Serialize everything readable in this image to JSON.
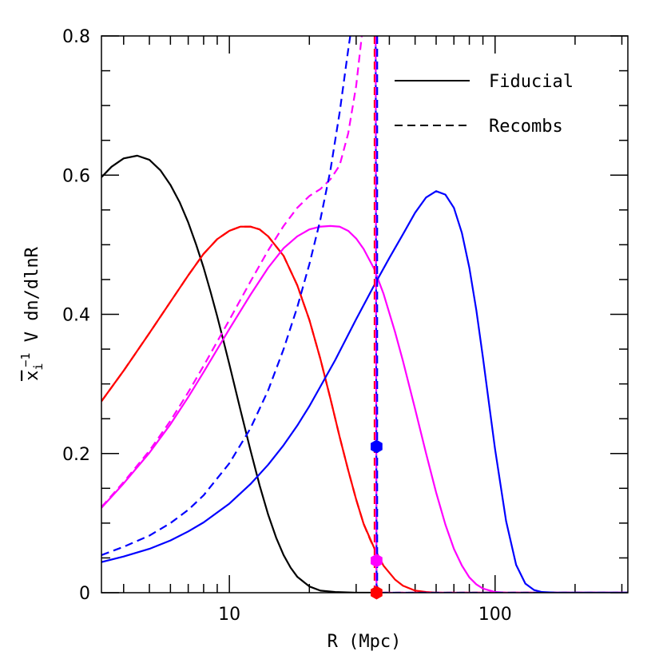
{
  "chart_data": {
    "type": "line",
    "xscale": "log",
    "xlim": [
      3.3,
      316
    ],
    "ylim": [
      0,
      0.8
    ],
    "xlabel": "R (Mpc)",
    "ylabel": {
      "prefix": "x",
      "sup": "−1",
      "sub": "i",
      "rest": " V dn/dlnR"
    },
    "x_tick_labels": [
      {
        "value": 10,
        "label": "10"
      },
      {
        "value": 100,
        "label": "100"
      }
    ],
    "y_tick_labels": [
      {
        "value": 0,
        "label": "0"
      },
      {
        "value": 0.2,
        "label": "0.2"
      },
      {
        "value": 0.4,
        "label": "0.4"
      },
      {
        "value": 0.6,
        "label": "0.6"
      },
      {
        "value": 0.8,
        "label": "0.8"
      }
    ],
    "legend": {
      "placement": "top-right",
      "entries": [
        {
          "label": "Fiducial",
          "style": "solid"
        },
        {
          "label": "Recombs",
          "style": "dashed"
        }
      ]
    },
    "series": [
      {
        "color": "#000000",
        "style": "solid",
        "points": [
          [
            3.3,
            0.597
          ],
          [
            3.6,
            0.612
          ],
          [
            4.0,
            0.624
          ],
          [
            4.5,
            0.628
          ],
          [
            5.0,
            0.622
          ],
          [
            5.5,
            0.607
          ],
          [
            6.0,
            0.586
          ],
          [
            6.5,
            0.561
          ],
          [
            7.0,
            0.532
          ],
          [
            7.5,
            0.5
          ],
          [
            8.0,
            0.467
          ],
          [
            8.5,
            0.432
          ],
          [
            9.0,
            0.397
          ],
          [
            9.5,
            0.362
          ],
          [
            10,
            0.328
          ],
          [
            11,
            0.263
          ],
          [
            12,
            0.205
          ],
          [
            13,
            0.154
          ],
          [
            14,
            0.112
          ],
          [
            15,
            0.079
          ],
          [
            16,
            0.054
          ],
          [
            17,
            0.036
          ],
          [
            18,
            0.023
          ],
          [
            20,
            0.009
          ],
          [
            22,
            0.003
          ],
          [
            25,
            0.001
          ],
          [
            30,
            0.0
          ],
          [
            36,
            0.0
          ]
        ]
      },
      {
        "color": "#ff0000",
        "style": "solid",
        "points": [
          [
            3.3,
            0.275
          ],
          [
            4,
            0.319
          ],
          [
            5,
            0.373
          ],
          [
            6,
            0.418
          ],
          [
            7,
            0.456
          ],
          [
            8,
            0.487
          ],
          [
            9,
            0.508
          ],
          [
            10,
            0.52
          ],
          [
            11,
            0.526
          ],
          [
            12,
            0.526
          ],
          [
            13,
            0.522
          ],
          [
            14,
            0.512
          ],
          [
            16,
            0.484
          ],
          [
            18,
            0.442
          ],
          [
            20,
            0.392
          ],
          [
            22,
            0.336
          ],
          [
            24,
            0.279
          ],
          [
            26,
            0.224
          ],
          [
            28,
            0.176
          ],
          [
            30,
            0.134
          ],
          [
            32,
            0.099
          ],
          [
            35,
            0.065
          ],
          [
            38,
            0.039
          ],
          [
            42,
            0.019
          ],
          [
            45,
            0.01
          ],
          [
            50,
            0.003
          ],
          [
            55,
            0.001
          ],
          [
            60,
            0.0
          ],
          [
            316,
            0.0
          ]
        ]
      },
      {
        "color": "#ff0000",
        "style": "dashed",
        "points": [
          [
            3.3,
            0.275
          ],
          [
            4,
            0.319
          ],
          [
            5,
            0.373
          ],
          [
            6,
            0.418
          ],
          [
            7,
            0.456
          ],
          [
            8,
            0.487
          ],
          [
            9,
            0.508
          ],
          [
            10,
            0.52
          ],
          [
            11,
            0.526
          ],
          [
            12,
            0.526
          ],
          [
            13,
            0.522
          ],
          [
            14,
            0.512
          ],
          [
            16,
            0.484
          ],
          [
            18,
            0.442
          ],
          [
            20,
            0.392
          ],
          [
            22,
            0.336
          ],
          [
            24,
            0.279
          ],
          [
            26,
            0.224
          ],
          [
            28,
            0.176
          ],
          [
            30,
            0.134
          ],
          [
            32,
            0.099
          ],
          [
            34,
            0.075
          ],
          [
            35.5,
            0.06
          ],
          [
            35.8,
            0.0
          ],
          [
            316,
            0.0
          ]
        ]
      },
      {
        "color": "#ff00ff",
        "style": "solid",
        "points": [
          [
            3.3,
            0.122
          ],
          [
            4,
            0.157
          ],
          [
            5,
            0.201
          ],
          [
            6,
            0.242
          ],
          [
            7,
            0.281
          ],
          [
            8,
            0.317
          ],
          [
            10,
            0.379
          ],
          [
            12,
            0.428
          ],
          [
            14,
            0.467
          ],
          [
            16,
            0.495
          ],
          [
            18,
            0.512
          ],
          [
            20,
            0.522
          ],
          [
            22,
            0.526
          ],
          [
            24,
            0.527
          ],
          [
            26,
            0.526
          ],
          [
            28,
            0.52
          ],
          [
            30,
            0.509
          ],
          [
            32,
            0.494
          ],
          [
            35,
            0.466
          ],
          [
            38,
            0.43
          ],
          [
            42,
            0.375
          ],
          [
            45,
            0.333
          ],
          [
            50,
            0.264
          ],
          [
            55,
            0.2
          ],
          [
            60,
            0.144
          ],
          [
            65,
            0.098
          ],
          [
            70,
            0.063
          ],
          [
            75,
            0.039
          ],
          [
            80,
            0.022
          ],
          [
            85,
            0.012
          ],
          [
            90,
            0.006
          ],
          [
            100,
            0.001
          ],
          [
            110,
            0.0
          ],
          [
            316,
            0.0
          ]
        ]
      },
      {
        "color": "#ff00ff",
        "style": "dashed",
        "points": [
          [
            3.3,
            0.123
          ],
          [
            4,
            0.159
          ],
          [
            5,
            0.204
          ],
          [
            6,
            0.247
          ],
          [
            7,
            0.288
          ],
          [
            8,
            0.326
          ],
          [
            10,
            0.392
          ],
          [
            12,
            0.447
          ],
          [
            14,
            0.492
          ],
          [
            16,
            0.527
          ],
          [
            18,
            0.553
          ],
          [
            20,
            0.57
          ],
          [
            22,
            0.58
          ],
          [
            24,
            0.594
          ],
          [
            26,
            0.614
          ],
          [
            28,
            0.66
          ],
          [
            30,
            0.728
          ],
          [
            31.5,
            0.8
          ],
          [
            32.5,
            0.9
          ],
          [
            35.5,
            0.9
          ],
          [
            35.8,
            0.0
          ],
          [
            316,
            0.0
          ]
        ]
      },
      {
        "color": "#0000ff",
        "style": "solid",
        "points": [
          [
            3.3,
            0.044
          ],
          [
            4,
            0.052
          ],
          [
            5,
            0.063
          ],
          [
            6,
            0.075
          ],
          [
            7,
            0.088
          ],
          [
            8,
            0.101
          ],
          [
            10,
            0.128
          ],
          [
            12,
            0.156
          ],
          [
            14,
            0.184
          ],
          [
            16,
            0.212
          ],
          [
            18,
            0.24
          ],
          [
            20,
            0.268
          ],
          [
            25,
            0.334
          ],
          [
            30,
            0.393
          ],
          [
            35,
            0.441
          ],
          [
            40,
            0.481
          ],
          [
            45,
            0.515
          ],
          [
            50,
            0.546
          ],
          [
            55,
            0.568
          ],
          [
            60,
            0.577
          ],
          [
            65,
            0.572
          ],
          [
            70,
            0.553
          ],
          [
            75,
            0.517
          ],
          [
            80,
            0.467
          ],
          [
            85,
            0.406
          ],
          [
            90,
            0.338
          ],
          [
            95,
            0.27
          ],
          [
            100,
            0.206
          ],
          [
            110,
            0.103
          ],
          [
            120,
            0.04
          ],
          [
            130,
            0.013
          ],
          [
            140,
            0.004
          ],
          [
            150,
            0.001
          ],
          [
            170,
            0.0
          ],
          [
            316,
            0.0
          ]
        ]
      },
      {
        "color": "#0000ff",
        "style": "dashed",
        "points": [
          [
            3.3,
            0.054
          ],
          [
            4,
            0.066
          ],
          [
            5,
            0.082
          ],
          [
            6,
            0.1
          ],
          [
            7,
            0.119
          ],
          [
            8,
            0.14
          ],
          [
            10,
            0.186
          ],
          [
            12,
            0.236
          ],
          [
            14,
            0.291
          ],
          [
            16,
            0.35
          ],
          [
            18,
            0.41
          ],
          [
            20,
            0.472
          ],
          [
            22,
            0.536
          ],
          [
            24,
            0.607
          ],
          [
            26,
            0.69
          ],
          [
            28,
            0.78
          ],
          [
            28.5,
            0.8
          ],
          [
            29.5,
            0.9
          ],
          [
            35.5,
            0.9
          ],
          [
            35.8,
            0.0
          ],
          [
            316,
            0.0
          ]
        ]
      }
    ],
    "vertical_lines": [
      {
        "x": 35.2,
        "color": "#ff0000",
        "style": "dashed"
      },
      {
        "x": 35.6,
        "color": "#ff00ff",
        "style": "dashed"
      },
      {
        "x": 36.0,
        "color": "#0000ff",
        "style": "dashed"
      }
    ],
    "markers": [
      {
        "x": 35.8,
        "y": 0.21,
        "color": "#0000ff",
        "shape": "hexagon"
      },
      {
        "x": 35.8,
        "y": 0.046,
        "color": "#ff00ff",
        "shape": "hexagon"
      },
      {
        "x": 35.8,
        "y": 0.0,
        "color": "#ff0000",
        "shape": "hexagon"
      }
    ]
  }
}
